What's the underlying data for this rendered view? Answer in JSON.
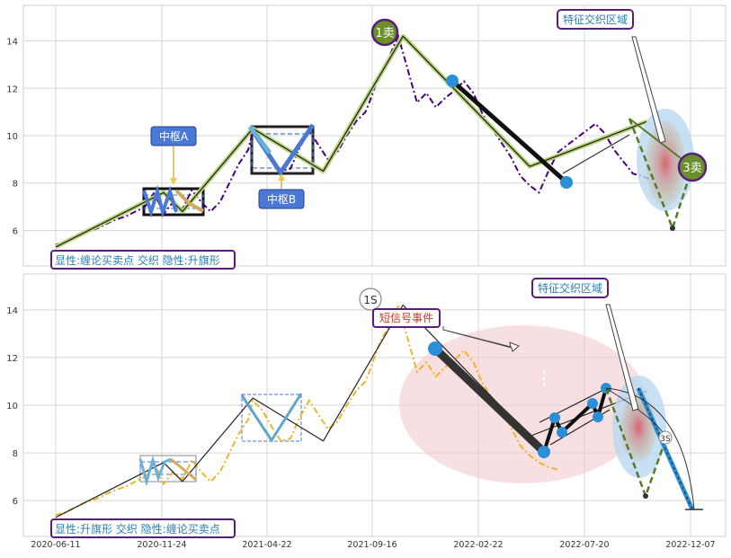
{
  "chart_data": [
    {
      "type": "line",
      "panel": "top",
      "ylim": [
        4.5,
        15.5
      ],
      "yticks": [
        "6",
        "8",
        "10",
        "12",
        "14"
      ],
      "grid": true,
      "series": [
        {
          "name": "",
          "style": "dash-dot",
          "color": "#4b0082",
          "x": [
            0,
            10,
            20,
            30,
            45,
            60,
            75,
            85,
            95,
            105,
            115,
            125,
            135,
            145,
            155,
            165,
            175,
            185,
            195,
            205,
            210,
            220,
            230,
            240,
            250,
            260,
            270,
            280,
            290,
            300,
            310,
            320,
            330,
            335,
            345,
            355,
            365,
            375,
            385,
            395,
            405,
            415,
            425,
            435,
            445,
            455,
            465,
            475,
            485,
            495,
            505,
            515,
            525,
            535,
            545,
            555,
            565,
            575,
            585,
            595,
            605,
            615,
            625,
            635
          ],
          "y": [
            5.4,
            5.5,
            5.7,
            5.9,
            6.1,
            6.4,
            6.6,
            6.8,
            7.0,
            7.6,
            6.7,
            7.2,
            6.9,
            7.7,
            7.2,
            6.8,
            7.2,
            8.0,
            8.8,
            9.4,
            10.2,
            9.8,
            9.1,
            8.5,
            8.6,
            9.5,
            10.2,
            9.6,
            9.0,
            9.3,
            10.0,
            10.6,
            11.0,
            11.5,
            12.6,
            13.3,
            14.2,
            12.8,
            11.4,
            11.8,
            11.2,
            11.6,
            11.9,
            12.3,
            11.8,
            10.9,
            10.3,
            9.7,
            9.1,
            8.3,
            7.9,
            7.6,
            8.5,
            9.3,
            9.6,
            9.9,
            10.2,
            10.5,
            10.1,
            9.4,
            8.9,
            8.4,
            8.3,
            8.1
          ]
        },
        {
          "name": "",
          "style": "solid",
          "color": "#222222",
          "x": [
            0,
            115,
            135,
            210,
            285,
            370,
            505,
            630
          ],
          "y": [
            5.3,
            7.6,
            6.8,
            10.3,
            8.5,
            14.2,
            8.7,
            10.6
          ]
        }
      ],
      "annotations": [
        {
          "text": "中枢A",
          "kind": "label"
        },
        {
          "text": "中枢B",
          "kind": "label"
        },
        {
          "text": "1卖",
          "kind": "marker"
        },
        {
          "text": "3卖",
          "kind": "marker"
        },
        {
          "text": "特征交织区域",
          "kind": "callout"
        },
        {
          "text": "显性:缠论买卖点 交织 隐性:升旗形",
          "kind": "legend"
        }
      ]
    },
    {
      "type": "line",
      "panel": "bottom",
      "ylim": [
        4.5,
        15.5
      ],
      "yticks": [
        "6",
        "8",
        "10",
        "12",
        "14"
      ],
      "xticks": [
        "2020-06-11",
        "2020-11-24",
        "2021-04-22",
        "2021-09-16",
        "2022-02-22",
        "2022-07-20",
        "2022-12-07"
      ],
      "grid": true,
      "series": [
        {
          "name": "",
          "style": "dash-dot",
          "color": "#f0b429",
          "x": [
            0,
            10,
            20,
            30,
            45,
            60,
            75,
            85,
            95,
            105,
            115,
            125,
            135,
            145,
            155,
            165,
            175,
            185,
            195,
            205,
            210,
            220,
            230,
            240,
            250,
            260,
            270,
            280,
            290,
            300,
            310,
            320,
            330,
            335,
            345,
            355,
            365,
            375,
            385,
            395,
            405,
            415,
            425,
            435,
            445,
            455,
            465,
            475,
            485,
            495,
            505,
            515,
            525,
            535
          ],
          "y": [
            5.4,
            5.5,
            5.7,
            5.9,
            6.1,
            6.4,
            6.6,
            6.8,
            7.0,
            7.6,
            6.7,
            7.2,
            6.9,
            7.7,
            7.2,
            6.8,
            7.2,
            8.0,
            8.8,
            9.4,
            10.2,
            9.8,
            9.1,
            8.5,
            8.6,
            9.5,
            10.2,
            9.6,
            9.0,
            9.3,
            10.0,
            10.6,
            11.0,
            11.5,
            12.6,
            13.3,
            14.2,
            12.8,
            11.4,
            11.8,
            11.2,
            11.6,
            11.9,
            12.3,
            11.8,
            10.9,
            10.3,
            9.7,
            9.1,
            8.3,
            7.9,
            7.6,
            7.4,
            7.3
          ]
        },
        {
          "name": "",
          "style": "solid",
          "color": "#222222",
          "x": [
            0,
            115,
            135,
            210,
            285,
            370,
            505,
            630
          ],
          "y": [
            5.3,
            7.6,
            6.8,
            10.3,
            8.5,
            14.2,
            8.7,
            10.6
          ]
        }
      ],
      "annotations": [
        {
          "text": "1S",
          "kind": "marker"
        },
        {
          "text": "3S",
          "kind": "marker"
        },
        {
          "text": "短信号事件",
          "kind": "callout"
        },
        {
          "text": "特征交织区域",
          "kind": "callout"
        },
        {
          "text": "显性:升旗形 交织 隐性:缠论买卖点",
          "kind": "legend"
        }
      ]
    }
  ],
  "colors": {
    "accent_label_bg": "#4a78d6",
    "legend_border": "#5a1e7a",
    "legend_text": "#3a7fc1",
    "marker_green": "#6a8f2a",
    "blue_dot": "#2a8fd6",
    "pink_region": "#f2c4c8",
    "short_signal_text": "#c0392b"
  }
}
